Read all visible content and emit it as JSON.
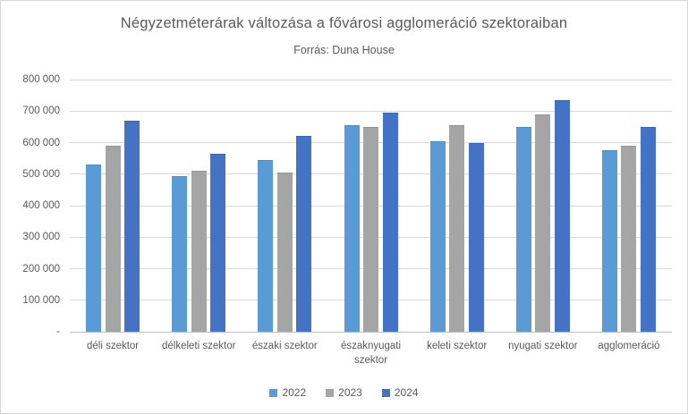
{
  "window": {
    "background": "#ffffff",
    "border_color": "#d6d6d6"
  },
  "chart_data": {
    "type": "bar",
    "title": "Négyzetméterárak változása a fővárosi agglomeráció szektoraiban",
    "subtitle": "Forrás: Duna House",
    "categories": [
      "déli szektor",
      "délkeleti szektor",
      "északi szektor",
      "északnyugati szektor",
      "keleti szektor",
      "nyugati szektor",
      "agglomeráció"
    ],
    "series": [
      {
        "name": "2022",
        "color": "#5B9BD5",
        "edge_color": "#4A8BC9",
        "values": [
          530000,
          495000,
          545000,
          655000,
          605000,
          650000,
          575000
        ]
      },
      {
        "name": "2023",
        "color": "#A5A5A5",
        "edge_color": "#939393",
        "values": [
          590000,
          510000,
          505000,
          650000,
          655000,
          690000,
          590000
        ]
      },
      {
        "name": "2024",
        "color": "#4472C4",
        "edge_color": "#3A64AE",
        "values": [
          670000,
          565000,
          620000,
          695000,
          600000,
          735000,
          650000
        ]
      }
    ],
    "ylim": [
      0,
      800000
    ],
    "ytick_step": 100000,
    "ytick_labels": [
      "-",
      "100 000",
      "200 000",
      "300 000",
      "400 000",
      "500 000",
      "600 000",
      "700 000",
      "800 000"
    ],
    "grid": true,
    "gridline_color": "#D9D9D9",
    "axis_color": "#BFBFBF",
    "text_color": "#595959",
    "legend_position": "bottom"
  }
}
